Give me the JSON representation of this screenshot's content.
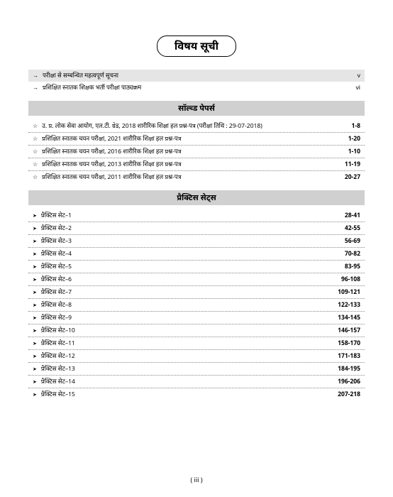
{
  "title": "विषय सूची",
  "intro": [
    {
      "label": "परीक्षा से सम्बन्धित महत्वपूर्ण सूचना",
      "pages": "v"
    },
    {
      "label": "प्रशिक्षित स्नातक शिक्षक भर्ती परीक्षा पाठ्यक्रम",
      "pages": "vi"
    }
  ],
  "sections": [
    {
      "header": "सॉल्व्ड पेपर्स",
      "bullet": "star",
      "rows": [
        {
          "label": "उ. प्र. लोक सेवा आयोग, एल.टी. ग्रेड, 2018 शारीरिक शिक्षा हल प्रश्न-पत्र (परीक्षा तिथि : 29-07-2018)",
          "pages": "1-8"
        },
        {
          "label": "प्रशिक्षित स्नातक चयन परीक्षा, 2021 शारीरिक शिक्षा हल प्रश्न-पत्र",
          "pages": "1-20"
        },
        {
          "label": "प्रशिक्षित स्नातक चयन परीक्षा, 2016 शारीरिक शिक्षा हल प्रश्न-पत्र",
          "pages": "1-10"
        },
        {
          "label": "प्रशिक्षित स्नातक चयन परीक्षा, 2013 शारीरिक शिक्षा हल प्रश्न-पत्र",
          "pages": "11-19"
        },
        {
          "label": "प्रशिक्षित स्नातक चयन परीक्षा, 2011 शारीरिक शिक्षा हल प्रश्न-पत्र",
          "pages": "20-27"
        }
      ]
    },
    {
      "header": "प्रैक्टिस सेट्स",
      "bullet": "tri",
      "rows": [
        {
          "label": "प्रैक्टिस सेट–1",
          "pages": "28-41"
        },
        {
          "label": "प्रैक्टिस सेट–2",
          "pages": "42-55"
        },
        {
          "label": "प्रैक्टिस सेट–3",
          "pages": "56-69"
        },
        {
          "label": "प्रैक्टिस सेट–4",
          "pages": "70-82"
        },
        {
          "label": "प्रैक्टिस सेट–5",
          "pages": "83-95"
        },
        {
          "label": "प्रैक्टिस सेट–6",
          "pages": "96-108"
        },
        {
          "label": "प्रैक्टिस सेट–7",
          "pages": "109-121"
        },
        {
          "label": "प्रैक्टिस सेट–8",
          "pages": "122-133"
        },
        {
          "label": "प्रैक्टिस सेट–9",
          "pages": "134-145"
        },
        {
          "label": "प्रैक्टिस सेट–10",
          "pages": "146-157"
        },
        {
          "label": "प्रैक्टिस सेट–11",
          "pages": "158-170"
        },
        {
          "label": "प्रैक्टिस सेट–12",
          "pages": "171-183"
        },
        {
          "label": "प्रैक्टिस सेट–13",
          "pages": "184-195"
        },
        {
          "label": "प्रैक्टिस सेट–14",
          "pages": "196-206"
        },
        {
          "label": "प्रैक्टिस सेट–15",
          "pages": "207-218"
        }
      ]
    }
  ],
  "page_number": "( iii )"
}
